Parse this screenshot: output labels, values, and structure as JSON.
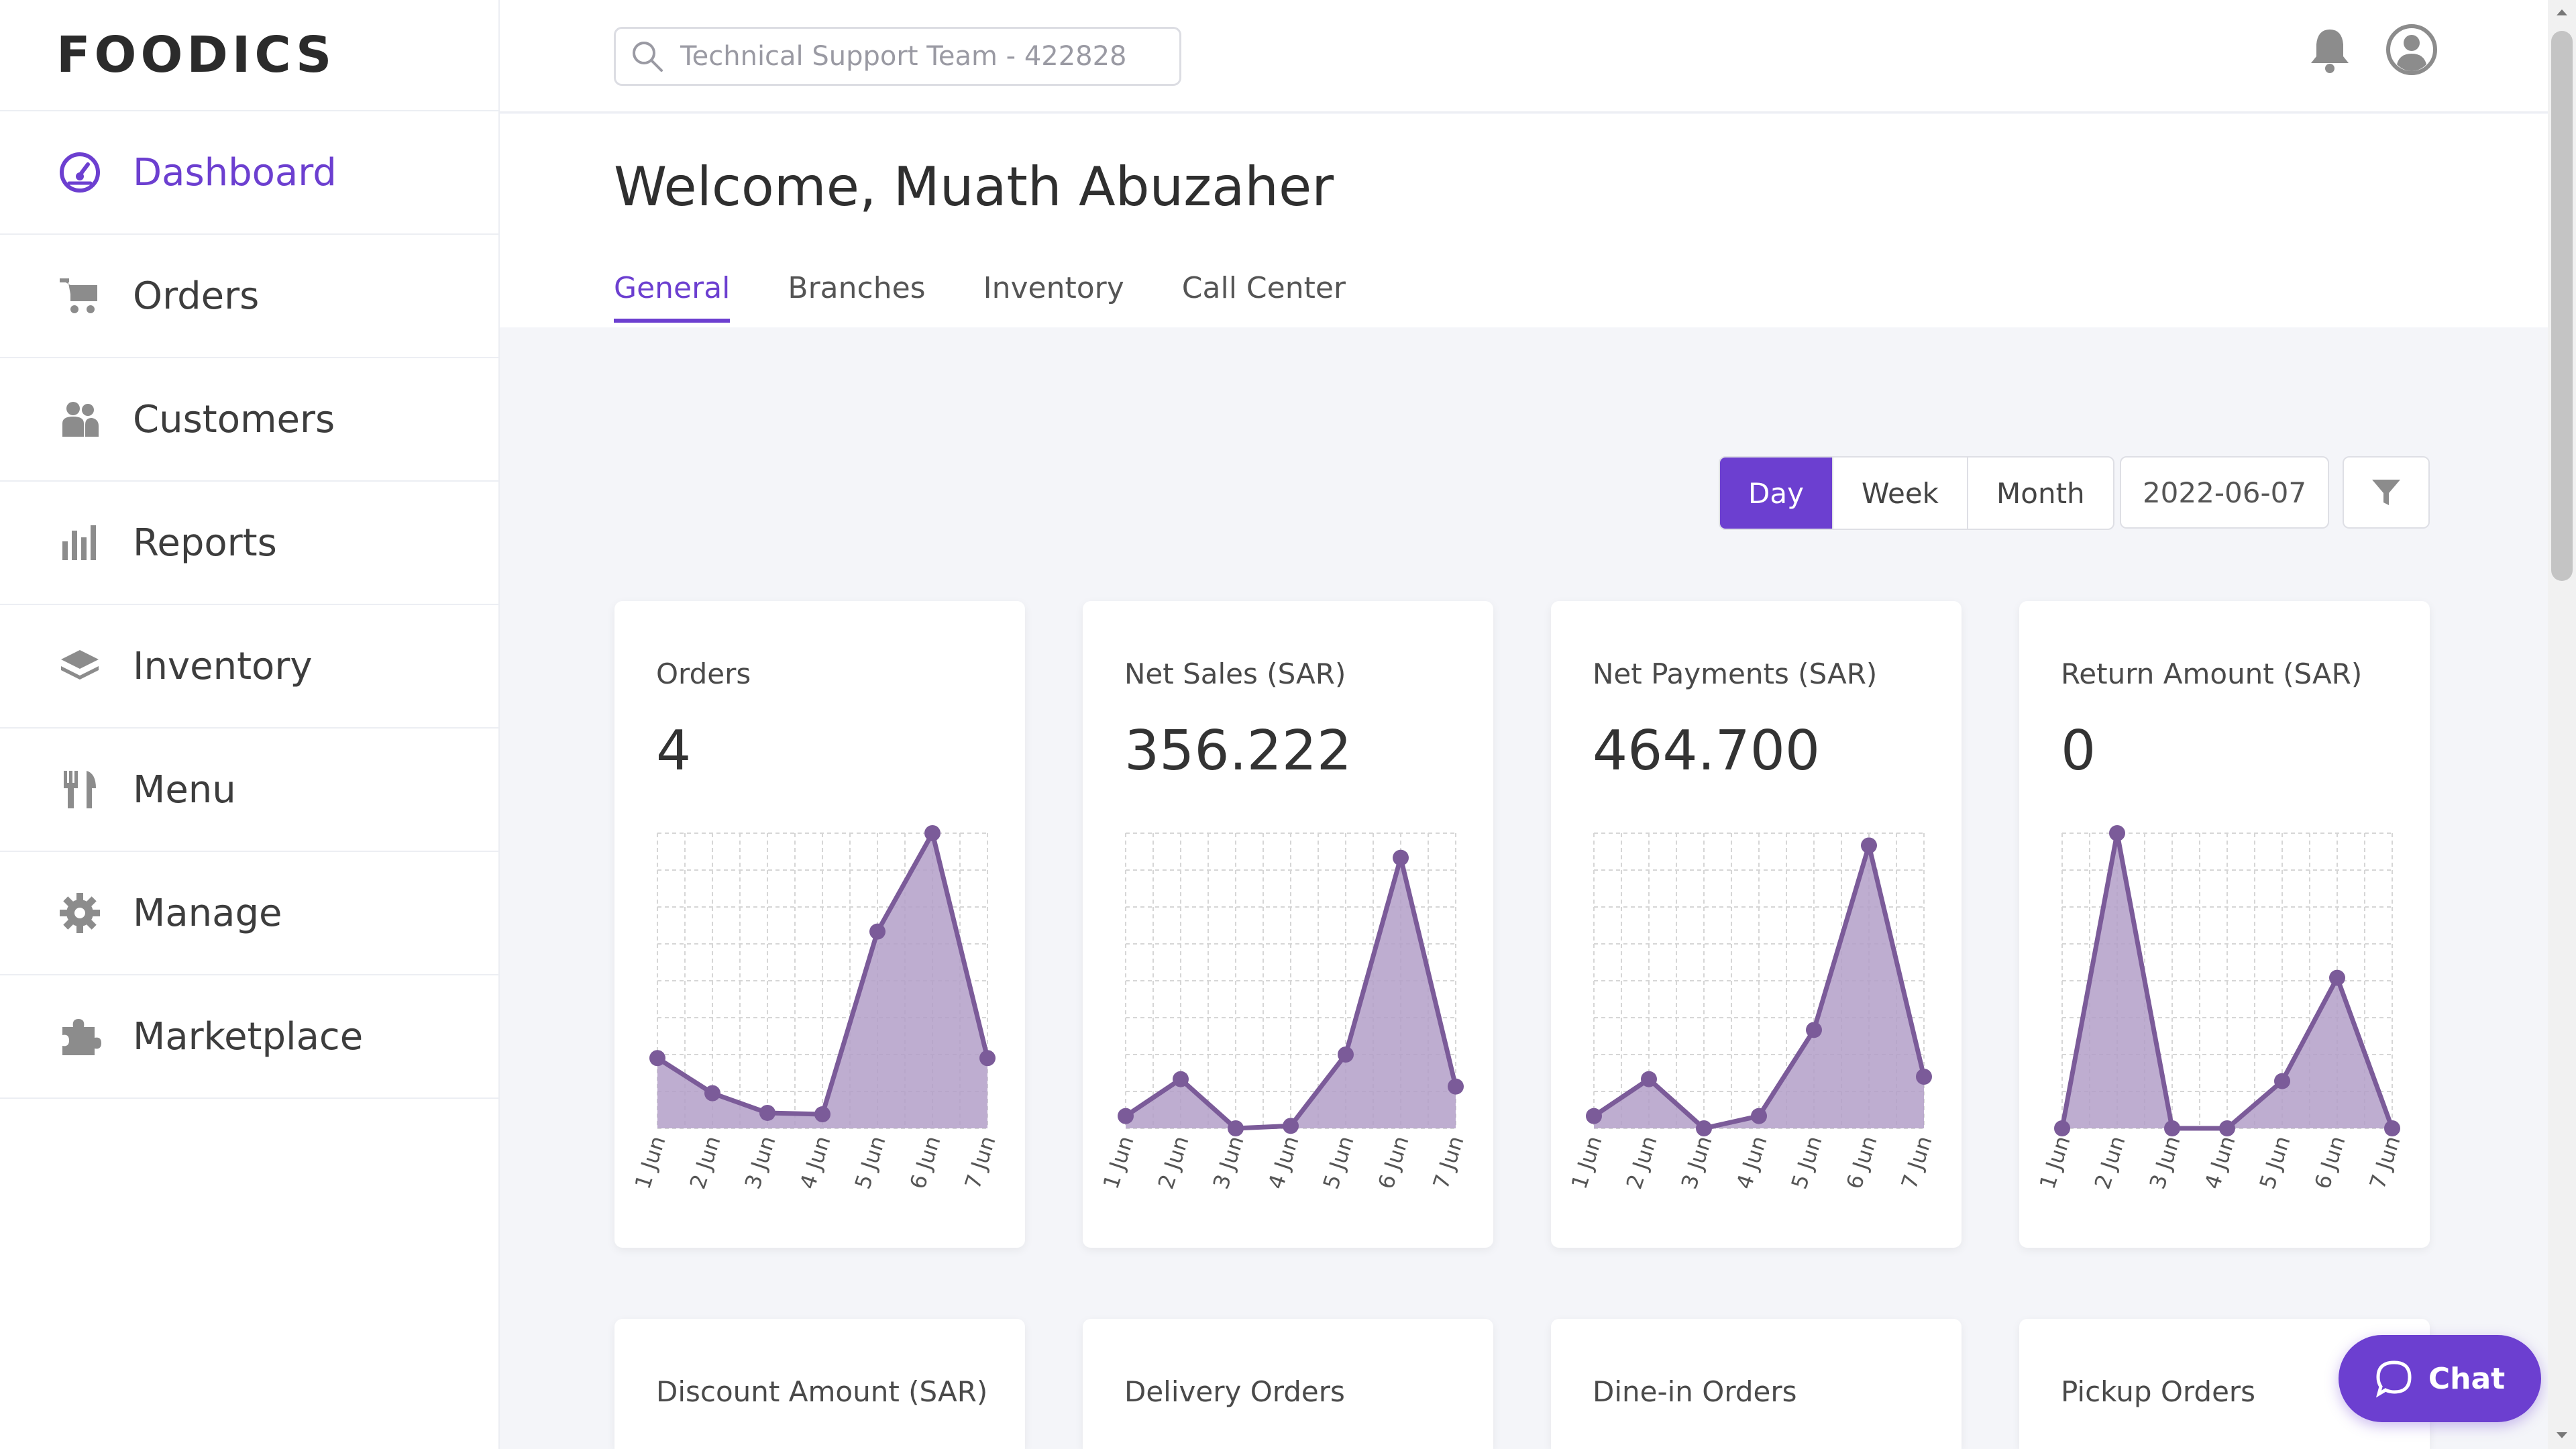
{
  "brand": {
    "logo_text": "FOODICS",
    "accent": "#6c3fd0"
  },
  "sidebar": {
    "items": [
      {
        "label": "Dashboard",
        "icon": "dashboard-gauge-icon",
        "active": true
      },
      {
        "label": "Orders",
        "icon": "cart-icon"
      },
      {
        "label": "Customers",
        "icon": "customers-icon"
      },
      {
        "label": "Reports",
        "icon": "bar-chart-icon"
      },
      {
        "label": "Inventory",
        "icon": "layers-icon"
      },
      {
        "label": "Menu",
        "icon": "fork-knife-icon"
      },
      {
        "label": "Manage",
        "icon": "gear-icon"
      },
      {
        "label": "Marketplace",
        "icon": "puzzle-icon"
      }
    ]
  },
  "topbar": {
    "search_placeholder": "Technical Support Team - 422828",
    "notifications_icon": "bell-icon",
    "profile_icon": "user-circle-icon"
  },
  "header": {
    "welcome": "Welcome, Muath Abuzaher",
    "tabs": [
      "General",
      "Branches",
      "Inventory",
      "Call Center"
    ],
    "active_tab": "General"
  },
  "controls": {
    "period": [
      "Day",
      "Week",
      "Month"
    ],
    "active_period": "Day",
    "date": "2022-06-07",
    "filter_icon": "filter-icon"
  },
  "cards": [
    {
      "title": "Orders",
      "value": "4"
    },
    {
      "title": "Net Sales (SAR)",
      "value": "356.222"
    },
    {
      "title": "Net Payments (SAR)",
      "value": "464.700"
    },
    {
      "title": "Return Amount (SAR)",
      "value": "0"
    },
    {
      "title": "Discount Amount (SAR)",
      "value": ""
    },
    {
      "title": "Delivery Orders",
      "value": ""
    },
    {
      "title": "Dine-in Orders",
      "value": ""
    },
    {
      "title": "Pickup Orders",
      "value": ""
    }
  ],
  "chart_data": [
    {
      "type": "area",
      "title": "Orders",
      "x": [
        "1 Jun",
        "2 Jun",
        "3 Jun",
        "4 Jun",
        "5 Jun",
        "6 Jun",
        "7 Jun"
      ],
      "values": [
        2.5,
        1.25,
        0.55,
        0.5,
        7,
        10.5,
        2.5
      ],
      "ylim": [
        0,
        10.5
      ]
    },
    {
      "type": "area",
      "title": "Net Sales (SAR)",
      "x": [
        "1 Jun",
        "2 Jun",
        "3 Jun",
        "4 Jun",
        "5 Jun",
        "6 Jun",
        "7 Jun"
      ],
      "values": [
        50,
        200,
        0,
        10,
        300,
        1100,
        170
      ],
      "ylim": [
        0,
        1200
      ]
    },
    {
      "type": "area",
      "title": "Net Payments (SAR)",
      "x": [
        "1 Jun",
        "2 Jun",
        "3 Jun",
        "4 Jun",
        "5 Jun",
        "6 Jun",
        "7 Jun"
      ],
      "values": [
        50,
        200,
        0,
        50,
        400,
        1150,
        210
      ],
      "ylim": [
        0,
        1200
      ]
    },
    {
      "type": "area",
      "title": "Return Amount (SAR)",
      "x": [
        "1 Jun",
        "2 Jun",
        "3 Jun",
        "4 Jun",
        "5 Jun",
        "6 Jun",
        "7 Jun"
      ],
      "values": [
        0,
        100,
        0,
        0,
        16,
        51,
        0
      ],
      "ylim": [
        0,
        100
      ]
    }
  ],
  "chat": {
    "label": "Chat",
    "icon": "chat-bubble-icon"
  },
  "colors": {
    "chart_line": "#7b5b99",
    "chart_fill": "#b39fc8",
    "grid": "#d6d6d6"
  }
}
